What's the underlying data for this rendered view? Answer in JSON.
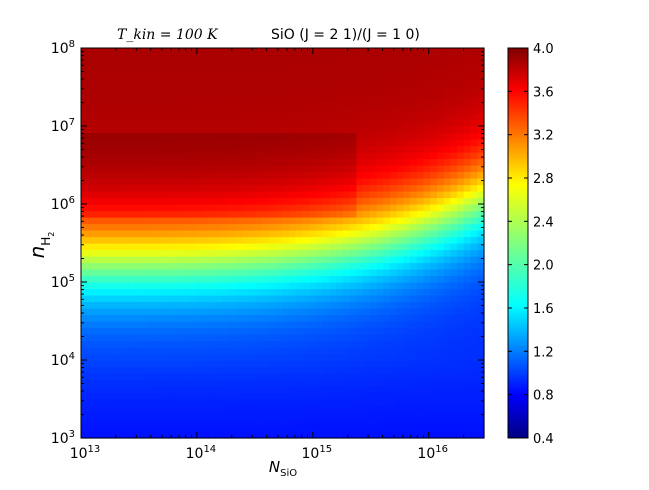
{
  "chart_data": {
    "type": "heatmap",
    "title_left": "T_kin = 100 K",
    "title_right": "SiO (J = 2 1)/(J = 1 0)",
    "xlabel": "N_SiO",
    "ylabel": "n_H2",
    "x_scale": "log",
    "y_scale": "log",
    "xlim": [
      10000000000000.0,
      3e+16
    ],
    "ylim": [
      1000.0,
      100000000.0
    ],
    "x_ticks": [
      "10^13",
      "10^14",
      "10^15",
      "10^16"
    ],
    "y_ticks": [
      "10^3",
      "10^4",
      "10^5",
      "10^6",
      "10^7",
      "10^8"
    ],
    "colorbar": {
      "min": 0.4,
      "max": 4.0,
      "ticks": [
        "0.4",
        "0.8",
        "1.2",
        "1.6",
        "2.0",
        "2.4",
        "2.8",
        "3.2",
        "3.6",
        "4.0"
      ],
      "colormap": "jet"
    },
    "grid": false,
    "legend": "none"
  }
}
